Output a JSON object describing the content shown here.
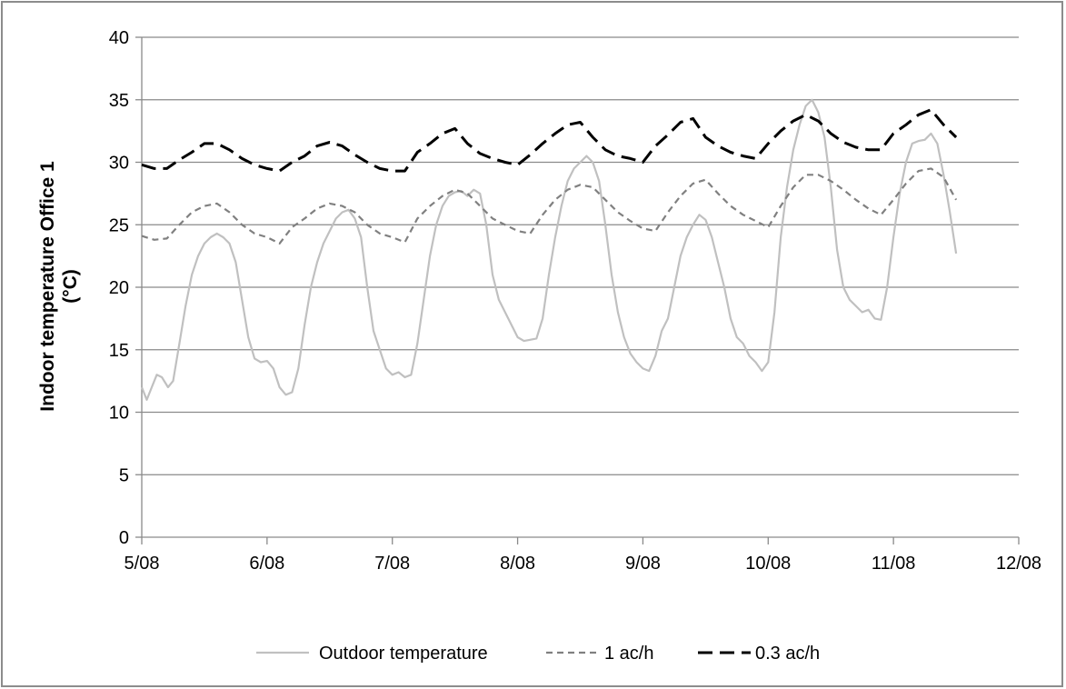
{
  "chart_data": {
    "type": "line",
    "title": "",
    "xlabel": "",
    "ylabel": "Indoor temperature Office 1 (°C)",
    "ylabel_lines": [
      "Indoor temperature Office 1",
      "(°C)"
    ],
    "ylim": [
      0,
      40
    ],
    "yticks": [
      0,
      5,
      10,
      15,
      20,
      25,
      30,
      35,
      40
    ],
    "xlim": [
      5,
      12
    ],
    "xticks": [
      {
        "value": 5,
        "label": "5/08"
      },
      {
        "value": 6,
        "label": "6/08"
      },
      {
        "value": 7,
        "label": "7/08"
      },
      {
        "value": 8,
        "label": "8/08"
      },
      {
        "value": 9,
        "label": "9/08"
      },
      {
        "value": 10,
        "label": "10/08"
      },
      {
        "value": 11,
        "label": "11/08"
      },
      {
        "value": 12,
        "label": "12/08"
      }
    ],
    "grid": "horizontal",
    "legend_position": "bottom",
    "series": [
      {
        "name": "Outdoor temperature",
        "color": "#c0c0c0",
        "style": "solid",
        "points": [
          [
            5.0,
            12.0
          ],
          [
            5.04,
            11.0
          ],
          [
            5.08,
            12.0
          ],
          [
            5.12,
            13.0
          ],
          [
            5.16,
            12.8
          ],
          [
            5.21,
            12.0
          ],
          [
            5.25,
            12.5
          ],
          [
            5.3,
            15.5
          ],
          [
            5.35,
            18.5
          ],
          [
            5.4,
            21.0
          ],
          [
            5.45,
            22.5
          ],
          [
            5.5,
            23.5
          ],
          [
            5.55,
            24.0
          ],
          [
            5.6,
            24.3
          ],
          [
            5.65,
            24.0
          ],
          [
            5.7,
            23.5
          ],
          [
            5.75,
            22.0
          ],
          [
            5.8,
            19.0
          ],
          [
            5.85,
            16.0
          ],
          [
            5.9,
            14.3
          ],
          [
            5.95,
            14.0
          ],
          [
            6.0,
            14.1
          ],
          [
            6.05,
            13.5
          ],
          [
            6.1,
            12.0
          ],
          [
            6.15,
            11.4
          ],
          [
            6.2,
            11.6
          ],
          [
            6.25,
            13.5
          ],
          [
            6.3,
            17.0
          ],
          [
            6.35,
            20.0
          ],
          [
            6.4,
            22.0
          ],
          [
            6.45,
            23.5
          ],
          [
            6.5,
            24.5
          ],
          [
            6.55,
            25.5
          ],
          [
            6.6,
            26.0
          ],
          [
            6.65,
            26.2
          ],
          [
            6.7,
            25.5
          ],
          [
            6.75,
            24.0
          ],
          [
            6.8,
            20.0
          ],
          [
            6.85,
            16.5
          ],
          [
            6.9,
            15.0
          ],
          [
            6.95,
            13.5
          ],
          [
            7.0,
            13.0
          ],
          [
            7.05,
            13.2
          ],
          [
            7.1,
            12.8
          ],
          [
            7.15,
            13.0
          ],
          [
            7.2,
            15.5
          ],
          [
            7.25,
            19.0
          ],
          [
            7.3,
            22.5
          ],
          [
            7.35,
            25.0
          ],
          [
            7.4,
            26.5
          ],
          [
            7.45,
            27.3
          ],
          [
            7.5,
            27.6
          ],
          [
            7.55,
            27.7
          ],
          [
            7.6,
            27.3
          ],
          [
            7.65,
            27.8
          ],
          [
            7.7,
            27.5
          ],
          [
            7.75,
            25.0
          ],
          [
            7.8,
            21.0
          ],
          [
            7.85,
            19.0
          ],
          [
            7.9,
            18.0
          ],
          [
            7.95,
            17.0
          ],
          [
            8.0,
            16.0
          ],
          [
            8.05,
            15.7
          ],
          [
            8.1,
            15.8
          ],
          [
            8.15,
            15.9
          ],
          [
            8.2,
            17.5
          ],
          [
            8.25,
            21.0
          ],
          [
            8.3,
            24.0
          ],
          [
            8.35,
            26.5
          ],
          [
            8.4,
            28.5
          ],
          [
            8.45,
            29.5
          ],
          [
            8.5,
            30.0
          ],
          [
            8.55,
            30.5
          ],
          [
            8.6,
            30.0
          ],
          [
            8.65,
            28.5
          ],
          [
            8.7,
            25.0
          ],
          [
            8.75,
            21.0
          ],
          [
            8.8,
            18.0
          ],
          [
            8.85,
            16.0
          ],
          [
            8.9,
            14.7
          ],
          [
            8.95,
            14.0
          ],
          [
            9.0,
            13.5
          ],
          [
            9.05,
            13.3
          ],
          [
            9.1,
            14.5
          ],
          [
            9.15,
            16.5
          ],
          [
            9.2,
            17.5
          ],
          [
            9.25,
            20.0
          ],
          [
            9.3,
            22.5
          ],
          [
            9.35,
            24.0
          ],
          [
            9.4,
            25.0
          ],
          [
            9.45,
            25.8
          ],
          [
            9.5,
            25.4
          ],
          [
            9.55,
            24.0
          ],
          [
            9.6,
            22.0
          ],
          [
            9.65,
            20.0
          ],
          [
            9.7,
            17.5
          ],
          [
            9.75,
            16.0
          ],
          [
            9.8,
            15.5
          ],
          [
            9.85,
            14.5
          ],
          [
            9.9,
            14.0
          ],
          [
            9.95,
            13.3
          ],
          [
            10.0,
            14.0
          ],
          [
            10.05,
            18.0
          ],
          [
            10.1,
            24.0
          ],
          [
            10.15,
            28.0
          ],
          [
            10.2,
            31.0
          ],
          [
            10.25,
            33.0
          ],
          [
            10.3,
            34.5
          ],
          [
            10.35,
            35.0
          ],
          [
            10.4,
            34.0
          ],
          [
            10.45,
            32.0
          ],
          [
            10.5,
            28.0
          ],
          [
            10.55,
            23.0
          ],
          [
            10.6,
            20.0
          ],
          [
            10.65,
            19.0
          ],
          [
            10.7,
            18.5
          ],
          [
            10.75,
            18.0
          ],
          [
            10.8,
            18.2
          ],
          [
            10.85,
            17.5
          ],
          [
            10.9,
            17.4
          ],
          [
            10.95,
            20.0
          ],
          [
            11.0,
            24.0
          ],
          [
            11.05,
            27.5
          ],
          [
            11.1,
            30.0
          ],
          [
            11.15,
            31.5
          ],
          [
            11.2,
            31.7
          ],
          [
            11.25,
            31.8
          ],
          [
            11.3,
            32.3
          ],
          [
            11.35,
            31.5
          ],
          [
            11.4,
            29.0
          ],
          [
            11.45,
            26.0
          ],
          [
            11.5,
            22.7
          ]
        ]
      },
      {
        "name": "1 ac/h",
        "color": "#808080",
        "style": "dashed",
        "points": [
          [
            5.0,
            24.1
          ],
          [
            5.1,
            23.8
          ],
          [
            5.2,
            23.9
          ],
          [
            5.3,
            25.0
          ],
          [
            5.4,
            26.0
          ],
          [
            5.5,
            26.5
          ],
          [
            5.6,
            26.7
          ],
          [
            5.7,
            26.0
          ],
          [
            5.8,
            25.0
          ],
          [
            5.9,
            24.3
          ],
          [
            6.0,
            24.0
          ],
          [
            6.1,
            23.5
          ],
          [
            6.2,
            24.8
          ],
          [
            6.3,
            25.5
          ],
          [
            6.4,
            26.3
          ],
          [
            6.5,
            26.7
          ],
          [
            6.6,
            26.5
          ],
          [
            6.7,
            26.0
          ],
          [
            6.8,
            25.0
          ],
          [
            6.9,
            24.3
          ],
          [
            7.0,
            24.0
          ],
          [
            7.1,
            23.6
          ],
          [
            7.2,
            25.5
          ],
          [
            7.3,
            26.5
          ],
          [
            7.4,
            27.3
          ],
          [
            7.5,
            27.8
          ],
          [
            7.6,
            27.5
          ],
          [
            7.7,
            26.5
          ],
          [
            7.8,
            25.5
          ],
          [
            7.9,
            25.0
          ],
          [
            8.0,
            24.5
          ],
          [
            8.1,
            24.3
          ],
          [
            8.2,
            25.8
          ],
          [
            8.3,
            27.0
          ],
          [
            8.4,
            27.8
          ],
          [
            8.5,
            28.2
          ],
          [
            8.6,
            28.0
          ],
          [
            8.7,
            27.0
          ],
          [
            8.8,
            26.0
          ],
          [
            8.9,
            25.3
          ],
          [
            9.0,
            24.7
          ],
          [
            9.1,
            24.5
          ],
          [
            9.2,
            26.0
          ],
          [
            9.3,
            27.3
          ],
          [
            9.4,
            28.3
          ],
          [
            9.5,
            28.6
          ],
          [
            9.6,
            27.5
          ],
          [
            9.7,
            26.5
          ],
          [
            9.8,
            25.8
          ],
          [
            9.9,
            25.3
          ],
          [
            10.0,
            24.8
          ],
          [
            10.1,
            26.5
          ],
          [
            10.2,
            28.0
          ],
          [
            10.3,
            29.0
          ],
          [
            10.4,
            29.0
          ],
          [
            10.5,
            28.5
          ],
          [
            10.6,
            27.8
          ],
          [
            10.7,
            27.0
          ],
          [
            10.8,
            26.3
          ],
          [
            10.9,
            25.8
          ],
          [
            11.0,
            27.0
          ],
          [
            11.1,
            28.3
          ],
          [
            11.2,
            29.3
          ],
          [
            11.3,
            29.5
          ],
          [
            11.4,
            28.8
          ],
          [
            11.5,
            27.0
          ]
        ]
      },
      {
        "name": "0.3 ac/h",
        "color": "#000000",
        "style": "longdash",
        "points": [
          [
            5.0,
            29.8
          ],
          [
            5.1,
            29.5
          ],
          [
            5.2,
            29.5
          ],
          [
            5.3,
            30.2
          ],
          [
            5.4,
            30.8
          ],
          [
            5.5,
            31.5
          ],
          [
            5.6,
            31.5
          ],
          [
            5.7,
            31.0
          ],
          [
            5.8,
            30.3
          ],
          [
            5.9,
            29.8
          ],
          [
            6.0,
            29.5
          ],
          [
            6.1,
            29.3
          ],
          [
            6.2,
            30.0
          ],
          [
            6.3,
            30.5
          ],
          [
            6.4,
            31.3
          ],
          [
            6.5,
            31.6
          ],
          [
            6.6,
            31.3
          ],
          [
            6.7,
            30.6
          ],
          [
            6.8,
            30.0
          ],
          [
            6.9,
            29.5
          ],
          [
            7.0,
            29.3
          ],
          [
            7.1,
            29.3
          ],
          [
            7.2,
            30.8
          ],
          [
            7.3,
            31.5
          ],
          [
            7.4,
            32.3
          ],
          [
            7.5,
            32.7
          ],
          [
            7.6,
            31.5
          ],
          [
            7.7,
            30.7
          ],
          [
            7.8,
            30.3
          ],
          [
            7.9,
            30.0
          ],
          [
            8.0,
            29.8
          ],
          [
            8.1,
            30.6
          ],
          [
            8.2,
            31.5
          ],
          [
            8.3,
            32.3
          ],
          [
            8.4,
            33.0
          ],
          [
            8.5,
            33.2
          ],
          [
            8.6,
            32.0
          ],
          [
            8.7,
            31.0
          ],
          [
            8.8,
            30.5
          ],
          [
            8.9,
            30.3
          ],
          [
            9.0,
            30.0
          ],
          [
            9.1,
            31.3
          ],
          [
            9.2,
            32.2
          ],
          [
            9.3,
            33.2
          ],
          [
            9.4,
            33.5
          ],
          [
            9.5,
            32.0
          ],
          [
            9.6,
            31.3
          ],
          [
            9.7,
            30.8
          ],
          [
            9.8,
            30.5
          ],
          [
            9.9,
            30.3
          ],
          [
            10.0,
            31.5
          ],
          [
            10.1,
            32.5
          ],
          [
            10.2,
            33.3
          ],
          [
            10.3,
            33.8
          ],
          [
            10.4,
            33.3
          ],
          [
            10.5,
            32.3
          ],
          [
            10.6,
            31.6
          ],
          [
            10.7,
            31.2
          ],
          [
            10.8,
            31.0
          ],
          [
            10.9,
            31.0
          ],
          [
            11.0,
            32.3
          ],
          [
            11.1,
            33.0
          ],
          [
            11.2,
            33.8
          ],
          [
            11.3,
            34.2
          ],
          [
            11.4,
            33.0
          ],
          [
            11.5,
            32.0
          ]
        ]
      }
    ]
  }
}
